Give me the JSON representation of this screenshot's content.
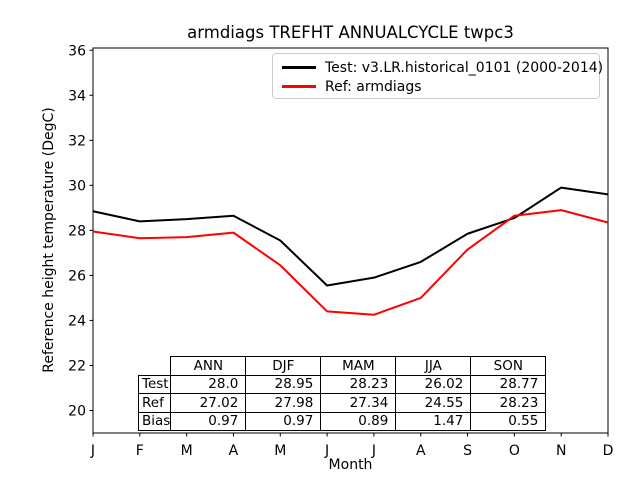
{
  "chart_data": {
    "type": "line",
    "title": "armdiags TREFHT ANNUALCYCLE twpc3",
    "xlabel": "Month",
    "ylabel": "Reference height temperature (DegC)",
    "x_tick_labels": [
      "J",
      "F",
      "M",
      "A",
      "M",
      "J",
      "J",
      "A",
      "S",
      "O",
      "N",
      "D"
    ],
    "y_ticks": [
      20,
      22,
      24,
      26,
      28,
      30,
      32,
      34,
      36
    ],
    "xlim": [
      0,
      11
    ],
    "ylim": [
      19.0,
      36.1
    ],
    "grid": false,
    "legend_position": "upper right",
    "series": [
      {
        "name": "test",
        "label": "Test: v3.LR.historical_0101 (2000-2014)",
        "color": "#000000",
        "values": [
          28.85,
          28.4,
          28.5,
          28.65,
          27.55,
          25.55,
          25.9,
          26.6,
          27.85,
          28.55,
          29.9,
          29.6
        ]
      },
      {
        "name": "ref",
        "label": "Ref: armdiags",
        "color": "#ff0000",
        "values": [
          27.95,
          27.65,
          27.7,
          27.9,
          26.45,
          24.4,
          24.25,
          25.0,
          27.15,
          28.65,
          28.9,
          28.35
        ]
      }
    ],
    "table": {
      "columns": [
        "ANN",
        "DJF",
        "MAM",
        "JJA",
        "SON"
      ],
      "rows": [
        {
          "label": "Test",
          "values": [
            "28.0",
            "28.95",
            "28.23",
            "26.02",
            "28.77"
          ]
        },
        {
          "label": "Ref",
          "values": [
            "27.02",
            "27.98",
            "27.34",
            "24.55",
            "28.23"
          ]
        },
        {
          "label": "Bias",
          "values": [
            "0.97",
            "0.97",
            "0.89",
            "1.47",
            "0.55"
          ]
        }
      ]
    }
  }
}
